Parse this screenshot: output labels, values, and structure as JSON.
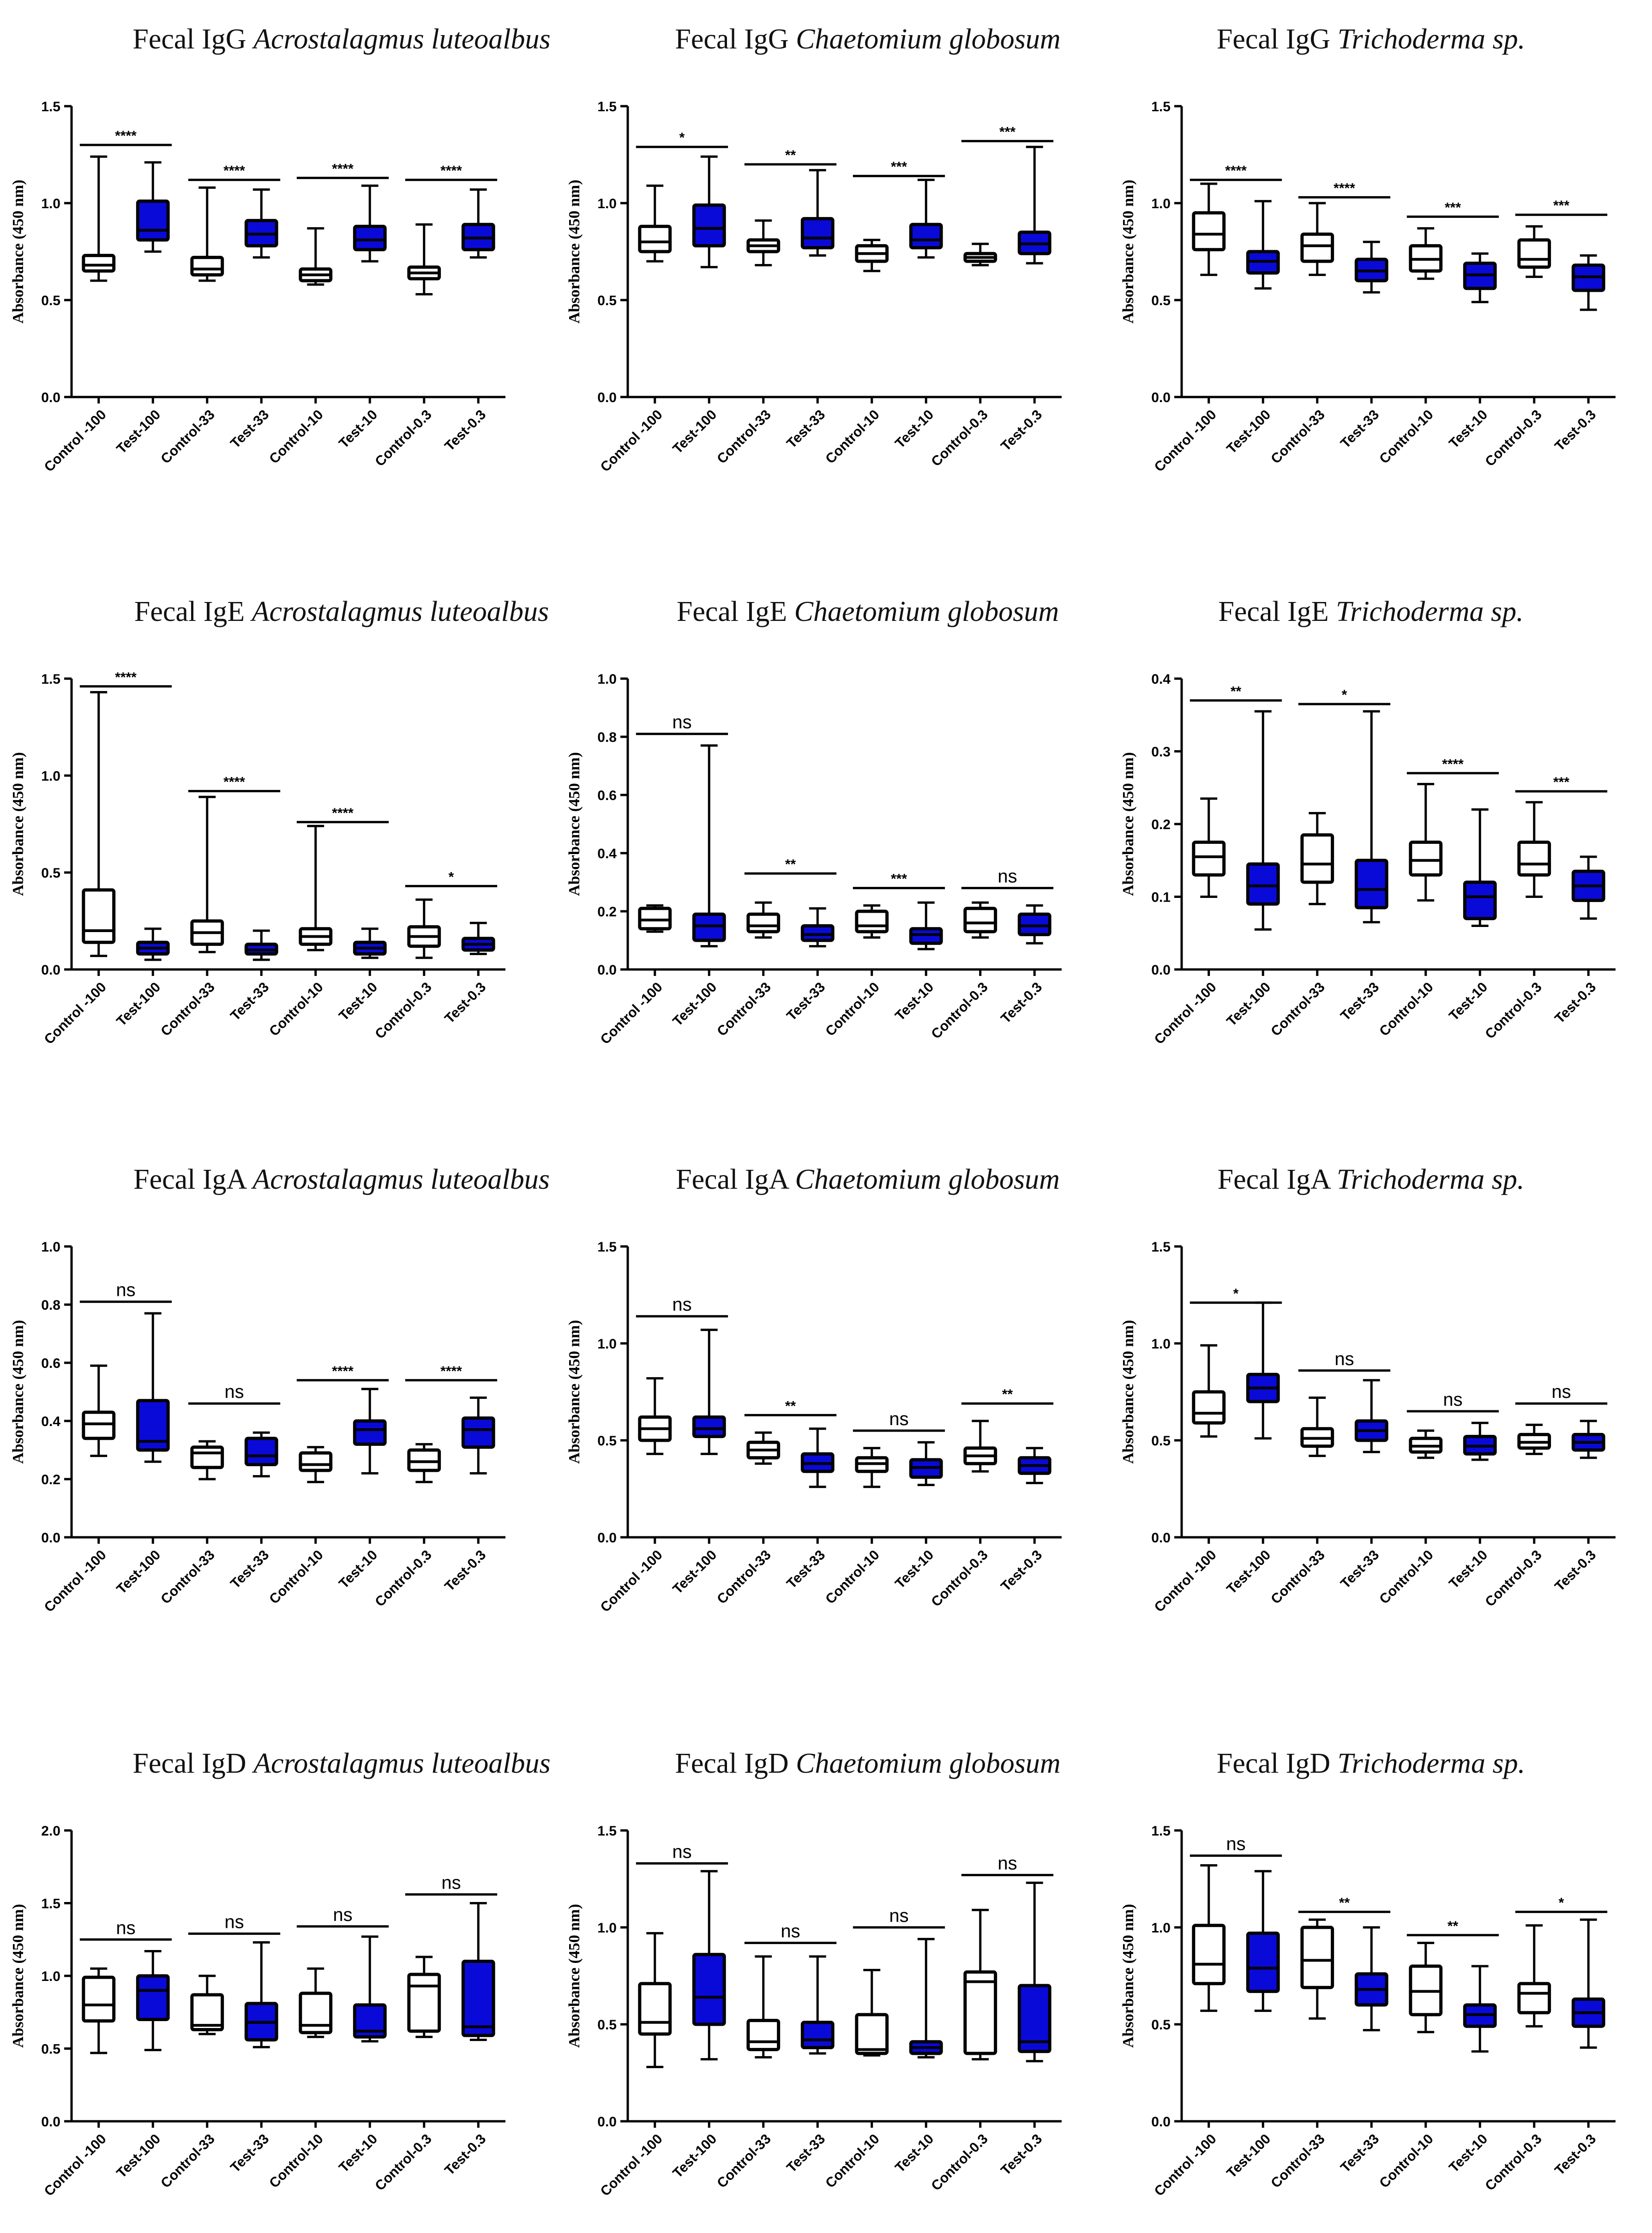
{
  "colors": {
    "control": "#ffffff",
    "test": "#0a0ad8",
    "line": "#000000"
  },
  "categories": [
    "Control -100",
    "Test-100",
    "Control-33",
    "Test-33",
    "Control-10",
    "Test-10",
    "Control-0.3",
    "Test-0.3"
  ],
  "chart_data": [
    {
      "type": "box",
      "title_prefix": "Fecal IgG",
      "title_species": "Acrostalagmus luteoalbus",
      "ylabel": "Absorbance (450 nm)",
      "ylim": [
        0,
        1.5
      ],
      "yticks": [
        "0.0",
        "0.5",
        "1.0",
        "1.5"
      ],
      "boxes": [
        [
          0.6,
          0.65,
          0.68,
          0.73,
          1.24
        ],
        [
          0.75,
          0.81,
          0.86,
          1.01,
          1.21
        ],
        [
          0.6,
          0.63,
          0.66,
          0.72,
          1.08
        ],
        [
          0.72,
          0.78,
          0.84,
          0.91,
          1.07
        ],
        [
          0.58,
          0.6,
          0.63,
          0.66,
          0.87
        ],
        [
          0.7,
          0.76,
          0.81,
          0.88,
          1.09
        ],
        [
          0.53,
          0.61,
          0.64,
          0.67,
          0.89
        ],
        [
          0.72,
          0.76,
          0.82,
          0.89,
          1.07
        ]
      ],
      "sig": [
        "****",
        "****",
        "****",
        "****"
      ],
      "sig_y": [
        1.3,
        1.12,
        1.13,
        1.12
      ]
    },
    {
      "type": "box",
      "title_prefix": "Fecal IgG",
      "title_species": "Chaetomium globosum",
      "ylabel": "Absorbance (450 nm)",
      "ylim": [
        0,
        1.5
      ],
      "yticks": [
        "0.0",
        "0.5",
        "1.0",
        "1.5"
      ],
      "boxes": [
        [
          0.7,
          0.75,
          0.8,
          0.88,
          1.09
        ],
        [
          0.67,
          0.78,
          0.87,
          0.99,
          1.24
        ],
        [
          0.68,
          0.75,
          0.78,
          0.81,
          0.91
        ],
        [
          0.73,
          0.77,
          0.82,
          0.92,
          1.17
        ],
        [
          0.65,
          0.7,
          0.74,
          0.78,
          0.81
        ],
        [
          0.72,
          0.77,
          0.81,
          0.89,
          1.12
        ],
        [
          0.68,
          0.7,
          0.72,
          0.74,
          0.79
        ],
        [
          0.69,
          0.74,
          0.79,
          0.85,
          1.29
        ]
      ],
      "sig": [
        "*",
        "**",
        "***",
        "***"
      ],
      "sig_y": [
        1.29,
        1.2,
        1.14,
        1.32
      ]
    },
    {
      "type": "box",
      "title_prefix": "Fecal IgG",
      "title_species": "Trichoderma sp.",
      "ylabel": "Absorbance (450 nm)",
      "ylim": [
        0,
        1.5
      ],
      "yticks": [
        "0.0",
        "0.5",
        "1.0",
        "1.5"
      ],
      "boxes": [
        [
          0.63,
          0.76,
          0.84,
          0.95,
          1.1
        ],
        [
          0.56,
          0.64,
          0.7,
          0.75,
          1.01
        ],
        [
          0.63,
          0.7,
          0.78,
          0.84,
          1.0
        ],
        [
          0.54,
          0.6,
          0.65,
          0.71,
          0.8
        ],
        [
          0.61,
          0.65,
          0.71,
          0.78,
          0.87
        ],
        [
          0.49,
          0.56,
          0.63,
          0.69,
          0.74
        ],
        [
          0.62,
          0.67,
          0.71,
          0.81,
          0.88
        ],
        [
          0.45,
          0.55,
          0.62,
          0.68,
          0.73
        ]
      ],
      "sig": [
        "****",
        "****",
        "***",
        "***"
      ],
      "sig_y": [
        1.12,
        1.03,
        0.93,
        0.94
      ]
    },
    {
      "type": "box",
      "title_prefix": "Fecal IgE",
      "title_species": "Acrostalagmus luteoalbus",
      "ylabel": "Absorbance (450 nm)",
      "ylim": [
        0,
        1.5
      ],
      "yticks": [
        "0.0",
        "0.5",
        "1.0",
        "1.5"
      ],
      "boxes": [
        [
          0.07,
          0.14,
          0.2,
          0.41,
          1.43
        ],
        [
          0.05,
          0.08,
          0.11,
          0.14,
          0.21
        ],
        [
          0.09,
          0.13,
          0.19,
          0.25,
          0.89
        ],
        [
          0.05,
          0.08,
          0.1,
          0.13,
          0.2
        ],
        [
          0.1,
          0.13,
          0.17,
          0.21,
          0.74
        ],
        [
          0.06,
          0.08,
          0.11,
          0.14,
          0.21
        ],
        [
          0.06,
          0.12,
          0.17,
          0.22,
          0.36
        ],
        [
          0.08,
          0.1,
          0.13,
          0.16,
          0.24
        ]
      ],
      "sig": [
        "****",
        "****",
        "****",
        "*"
      ],
      "sig_y": [
        1.46,
        0.92,
        0.76,
        0.43
      ]
    },
    {
      "type": "box",
      "title_prefix": "Fecal IgE",
      "title_species": "Chaetomium globosum",
      "ylabel": "Absorbance (450 nm)",
      "ylim": [
        0,
        1.0
      ],
      "yticks": [
        "0.0",
        "0.2",
        "0.4",
        "0.6",
        "0.8",
        "1.0"
      ],
      "boxes": [
        [
          0.13,
          0.14,
          0.17,
          0.21,
          0.22
        ],
        [
          0.08,
          0.1,
          0.15,
          0.19,
          0.77
        ],
        [
          0.11,
          0.13,
          0.15,
          0.19,
          0.23
        ],
        [
          0.08,
          0.1,
          0.12,
          0.15,
          0.21
        ],
        [
          0.11,
          0.13,
          0.15,
          0.2,
          0.22
        ],
        [
          0.07,
          0.09,
          0.12,
          0.14,
          0.23
        ],
        [
          0.11,
          0.13,
          0.16,
          0.21,
          0.23
        ],
        [
          0.09,
          0.12,
          0.15,
          0.19,
          0.22
        ]
      ],
      "sig": [
        "ns",
        "**",
        "***",
        "ns"
      ],
      "sig_y": [
        0.81,
        0.33,
        0.28,
        0.28
      ]
    },
    {
      "type": "box",
      "title_prefix": "Fecal IgE",
      "title_species": "Trichoderma sp.",
      "ylabel": "Absorbance (450 nm)",
      "ylim": [
        0,
        0.4
      ],
      "yticks": [
        "0.0",
        "0.1",
        "0.2",
        "0.3",
        "0.4"
      ],
      "boxes": [
        [
          0.1,
          0.13,
          0.155,
          0.175,
          0.235
        ],
        [
          0.055,
          0.09,
          0.115,
          0.145,
          0.355
        ],
        [
          0.09,
          0.12,
          0.145,
          0.185,
          0.215
        ],
        [
          0.065,
          0.085,
          0.11,
          0.15,
          0.355
        ],
        [
          0.095,
          0.13,
          0.15,
          0.175,
          0.255
        ],
        [
          0.06,
          0.07,
          0.1,
          0.12,
          0.22
        ],
        [
          0.1,
          0.13,
          0.145,
          0.175,
          0.23
        ],
        [
          0.07,
          0.095,
          0.115,
          0.135,
          0.155
        ]
      ],
      "sig": [
        "**",
        "*",
        "****",
        "***"
      ],
      "sig_y": [
        0.37,
        0.365,
        0.27,
        0.245
      ]
    },
    {
      "type": "box",
      "title_prefix": "Fecal IgA",
      "title_species": "Acrostalagmus luteoalbus",
      "ylabel": "Absorbance (450 nm)",
      "ylim": [
        0,
        1.0
      ],
      "yticks": [
        "0.0",
        "0.2",
        "0.4",
        "0.6",
        "0.8",
        "1.0"
      ],
      "boxes": [
        [
          0.28,
          0.34,
          0.39,
          0.43,
          0.59
        ],
        [
          0.26,
          0.3,
          0.33,
          0.47,
          0.77
        ],
        [
          0.2,
          0.24,
          0.29,
          0.31,
          0.33
        ],
        [
          0.21,
          0.25,
          0.28,
          0.34,
          0.36
        ],
        [
          0.19,
          0.23,
          0.25,
          0.29,
          0.31
        ],
        [
          0.22,
          0.32,
          0.37,
          0.4,
          0.51
        ],
        [
          0.19,
          0.23,
          0.26,
          0.3,
          0.32
        ],
        [
          0.22,
          0.31,
          0.37,
          0.41,
          0.48
        ]
      ],
      "sig": [
        "ns",
        "ns",
        "****",
        "****"
      ],
      "sig_y": [
        0.81,
        0.46,
        0.54,
        0.54
      ]
    },
    {
      "type": "box",
      "title_prefix": "Fecal IgA",
      "title_species": "Chaetomium globosum",
      "ylabel": "Absorbance (450 nm)",
      "ylim": [
        0,
        1.5
      ],
      "yticks": [
        "0.0",
        "0.5",
        "1.0",
        "1.5"
      ],
      "boxes": [
        [
          0.43,
          0.5,
          0.56,
          0.62,
          0.82
        ],
        [
          0.43,
          0.52,
          0.56,
          0.62,
          1.07
        ],
        [
          0.38,
          0.41,
          0.45,
          0.49,
          0.54
        ],
        [
          0.26,
          0.34,
          0.38,
          0.43,
          0.56
        ],
        [
          0.26,
          0.34,
          0.38,
          0.41,
          0.46
        ],
        [
          0.27,
          0.31,
          0.36,
          0.4,
          0.49
        ],
        [
          0.34,
          0.38,
          0.42,
          0.46,
          0.6
        ],
        [
          0.28,
          0.33,
          0.37,
          0.41,
          0.46
        ]
      ],
      "sig": [
        "ns",
        "**",
        "ns",
        "**"
      ],
      "sig_y": [
        1.14,
        0.63,
        0.55,
        0.69
      ]
    },
    {
      "type": "box",
      "title_prefix": "Fecal IgA",
      "title_species": "Trichoderma sp.",
      "ylabel": "Absorbance (450 nm)",
      "ylim": [
        0,
        1.5
      ],
      "yticks": [
        "0.0",
        "0.5",
        "1.0",
        "1.5"
      ],
      "boxes": [
        [
          0.52,
          0.59,
          0.64,
          0.75,
          0.99
        ],
        [
          0.51,
          0.7,
          0.77,
          0.84,
          1.21
        ],
        [
          0.42,
          0.47,
          0.51,
          0.56,
          0.72
        ],
        [
          0.44,
          0.5,
          0.55,
          0.6,
          0.81
        ],
        [
          0.41,
          0.44,
          0.47,
          0.51,
          0.55
        ],
        [
          0.4,
          0.43,
          0.47,
          0.52,
          0.59
        ],
        [
          0.43,
          0.46,
          0.49,
          0.53,
          0.58
        ],
        [
          0.41,
          0.45,
          0.49,
          0.53,
          0.6
        ]
      ],
      "sig": [
        "*",
        "ns",
        "ns",
        "ns"
      ],
      "sig_y": [
        1.21,
        0.86,
        0.65,
        0.69
      ]
    },
    {
      "type": "box",
      "title_prefix": "Fecal IgD",
      "title_species": "Acrostalagmus luteoalbus",
      "ylabel": "Absorbance (450 nm)",
      "ylim": [
        0,
        2.0
      ],
      "yticks": [
        "0.0",
        "0.5",
        "1.0",
        "1.5",
        "2.0"
      ],
      "boxes": [
        [
          0.47,
          0.69,
          0.8,
          0.99,
          1.05
        ],
        [
          0.49,
          0.7,
          0.9,
          1.0,
          1.17
        ],
        [
          0.6,
          0.63,
          0.66,
          0.87,
          1.0
        ],
        [
          0.51,
          0.56,
          0.68,
          0.81,
          1.23
        ],
        [
          0.58,
          0.61,
          0.66,
          0.88,
          1.05
        ],
        [
          0.55,
          0.58,
          0.62,
          0.8,
          1.27
        ],
        [
          0.58,
          0.62,
          0.93,
          1.01,
          1.13
        ],
        [
          0.56,
          0.59,
          0.65,
          1.1,
          1.5
        ]
      ],
      "sig": [
        "ns",
        "ns",
        "ns",
        "ns"
      ],
      "sig_y": [
        1.25,
        1.29,
        1.34,
        1.56
      ]
    },
    {
      "type": "box",
      "title_prefix": "Fecal IgD",
      "title_species": "Chaetomium globosum",
      "ylabel": "Absorbance (450 nm)",
      "ylim": [
        0,
        1.5
      ],
      "yticks": [
        "0.0",
        "0.5",
        "1.0",
        "1.5"
      ],
      "boxes": [
        [
          0.28,
          0.45,
          0.51,
          0.71,
          0.97
        ],
        [
          0.32,
          0.5,
          0.64,
          0.86,
          1.29
        ],
        [
          0.33,
          0.37,
          0.41,
          0.52,
          0.85
        ],
        [
          0.35,
          0.38,
          0.42,
          0.51,
          0.85
        ],
        [
          0.34,
          0.35,
          0.37,
          0.55,
          0.78
        ],
        [
          0.33,
          0.35,
          0.38,
          0.41,
          0.94
        ],
        [
          0.32,
          0.35,
          0.72,
          0.77,
          1.09
        ],
        [
          0.31,
          0.36,
          0.41,
          0.7,
          1.23
        ]
      ],
      "sig": [
        "ns",
        "ns",
        "ns",
        "ns"
      ],
      "sig_y": [
        1.33,
        0.92,
        1.0,
        1.27
      ]
    },
    {
      "type": "box",
      "title_prefix": "Fecal IgD",
      "title_species": "Trichoderma sp.",
      "ylabel": "Absorbance (450 nm)",
      "ylim": [
        0,
        1.5
      ],
      "yticks": [
        "0.0",
        "0.5",
        "1.0",
        "1.5"
      ],
      "boxes": [
        [
          0.57,
          0.71,
          0.81,
          1.01,
          1.32
        ],
        [
          0.57,
          0.67,
          0.79,
          0.97,
          1.29
        ],
        [
          0.53,
          0.69,
          0.83,
          1.0,
          1.04
        ],
        [
          0.47,
          0.6,
          0.68,
          0.76,
          1.0
        ],
        [
          0.46,
          0.55,
          0.67,
          0.8,
          0.92
        ],
        [
          0.36,
          0.49,
          0.55,
          0.6,
          0.8
        ],
        [
          0.49,
          0.56,
          0.66,
          0.71,
          1.01
        ],
        [
          0.38,
          0.49,
          0.56,
          0.63,
          1.04
        ]
      ],
      "sig": [
        "ns",
        "**",
        "**",
        "*"
      ],
      "sig_y": [
        1.37,
        1.08,
        0.96,
        1.08
      ]
    }
  ]
}
